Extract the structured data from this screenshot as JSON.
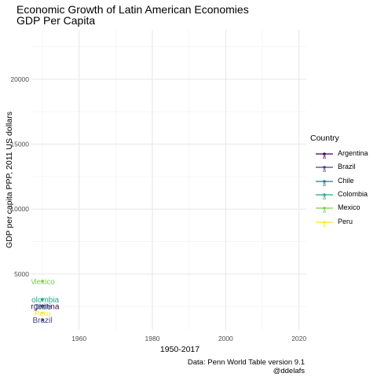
{
  "title": "Economic Growth of Latin American Economies",
  "subtitle": "GDP Per Capita",
  "caption_line1": "Data: Penn World Table version 9.1",
  "caption_line2": "@ddelafs",
  "legend_title": "Country",
  "chart_data": {
    "type": "line",
    "xlabel": "1950-2017",
    "ylabel": "GDP per capita PPP, 2011 US dollars",
    "xlim": [
      1947,
      2022
    ],
    "ylim": [
      700,
      23800
    ],
    "x_ticks": [
      1960,
      1980,
      2000,
      2020
    ],
    "y_ticks": [
      5000,
      10000,
      15000,
      20000
    ],
    "grid": true,
    "legend_position": "right",
    "series": [
      {
        "name": "Argentina",
        "color": "#440154",
        "x": [
          1950
        ],
        "y": [
          2550
        ],
        "point_label": "Argentina"
      },
      {
        "name": "Brazil",
        "color": "#414487",
        "x": [
          1950
        ],
        "y": [
          1480
        ],
        "point_label": "Brazil"
      },
      {
        "name": "Chile",
        "color": "#2A788E",
        "x": [
          1950
        ],
        "y": [
          2500
        ],
        "point_label": "Chile"
      },
      {
        "name": "Colombia",
        "color": "#22A884",
        "x": [
          1950
        ],
        "y": [
          3050
        ],
        "point_label": "Colombia"
      },
      {
        "name": "Mexico",
        "color": "#7AD151",
        "x": [
          1950
        ],
        "y": [
          4450
        ],
        "point_label": "Mexico"
      },
      {
        "name": "Peru",
        "color": "#FDE725",
        "x": [
          1950
        ],
        "y": [
          2000
        ],
        "point_label": "Peru"
      }
    ]
  }
}
